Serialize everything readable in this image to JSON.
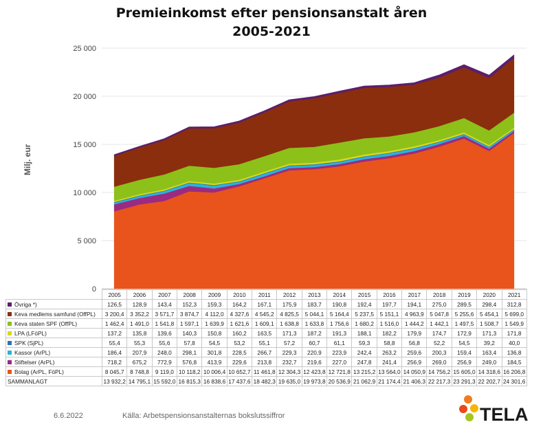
{
  "title_line1": "Premieinkomst efter pensionsanstalt åren",
  "title_line2": "2005-2021",
  "footer": {
    "date": "6.6.2022",
    "source": "Källa: Arbetspensionsanstalternas bokslutssiffror"
  },
  "logo": {
    "text": "TELA"
  },
  "chart_data": {
    "type": "area",
    "stacked": true,
    "title": "Premieinkomst efter pensionsanstalt åren 2005-2021",
    "ylabel": "Milj. eur",
    "ylim": [
      0,
      25000
    ],
    "yticks": [
      0,
      5000,
      10000,
      15000,
      20000,
      25000
    ],
    "ytick_labels": [
      "0",
      "5 000",
      "10 000",
      "15 000",
      "20 000",
      "25 000"
    ],
    "grid": true,
    "categories": [
      "2005",
      "2006",
      "2007",
      "2008",
      "2009",
      "2010",
      "2011",
      "2012",
      "2013",
      "2014",
      "2015",
      "2016",
      "2017",
      "2018",
      "2019",
      "2020",
      "2021"
    ],
    "series": [
      {
        "name": "Bolag (ArPL, FöPL)",
        "color": "#e8541c",
        "values": [
          8045.7,
          8748.8,
          9119.0,
          10118.2,
          10006.4,
          10652.7,
          11461.8,
          12304.3,
          12423.8,
          12721.8,
          13215.2,
          13564.0,
          14050.9,
          14756.2,
          15605.0,
          14318.6,
          16206.8
        ],
        "labels": [
          "8 045,7",
          "8 748,8",
          "9 119,0",
          "10 118,2",
          "10 006,4",
          "10 652,7",
          "11 461,8",
          "12 304,3",
          "12 423,8",
          "12 721,8",
          "13 215,2",
          "13 564,0",
          "14 050,9",
          "14 756,2",
          "15 605,0",
          "14 318,6",
          "16 206,8"
        ]
      },
      {
        "name": "Stiftelser (ArPL)",
        "color": "#9b2b82",
        "values": [
          718.2,
          675.2,
          772.9,
          576.8,
          413.9,
          229.6,
          213.8,
          232.7,
          219.6,
          227.0,
          247.8,
          241.4,
          256.9,
          269.0,
          256.9,
          249.0,
          184.5
        ],
        "labels": [
          "718,2",
          "675,2",
          "772,9",
          "576,8",
          "413,9",
          "229,6",
          "213,8",
          "232,7",
          "219,6",
          "227,0",
          "247,8",
          "241,4",
          "256,9",
          "269,0",
          "256,9",
          "249,0",
          "184,5"
        ]
      },
      {
        "name": "Kassor (ArPL)",
        "color": "#2bb3d6",
        "values": [
          186.4,
          207.9,
          248.0,
          298.1,
          301.8,
          228.5,
          266.7,
          229.3,
          220.9,
          223.9,
          242.4,
          263.2,
          259.6,
          200.3,
          159.4,
          163.4,
          136.8
        ],
        "labels": [
          "186,4",
          "207,9",
          "248,0",
          "298,1",
          "301,8",
          "228,5",
          "266,7",
          "229,3",
          "220,9",
          "223,9",
          "242,4",
          "263,2",
          "259,6",
          "200,3",
          "159,4",
          "163,4",
          "136,8"
        ]
      },
      {
        "name": "SPK (SjPL)",
        "color": "#2f6fb5",
        "values": [
          55.4,
          55.3,
          55.6,
          57.8,
          54.5,
          53.2,
          55.1,
          57.2,
          60.7,
          61.1,
          59.3,
          58.8,
          56.8,
          52.2,
          54.5,
          39.2,
          40.0
        ],
        "labels": [
          "55,4",
          "55,3",
          "55,6",
          "57,8",
          "54,5",
          "53,2",
          "55,1",
          "57,2",
          "60,7",
          "61,1",
          "59,3",
          "58,8",
          "56,8",
          "52,2",
          "54,5",
          "39,2",
          "40,0"
        ]
      },
      {
        "name": "LPA (LFöPL)",
        "color": "#d9d91a",
        "values": [
          137.2,
          135.8,
          139.6,
          140.3,
          150.8,
          160.2,
          163.5,
          171.3,
          187.2,
          191.3,
          188.1,
          182.2,
          179.9,
          174.7,
          172.9,
          171.3,
          171.8
        ],
        "labels": [
          "137,2",
          "135,8",
          "139,6",
          "140,3",
          "150,8",
          "160,2",
          "163,5",
          "171,3",
          "187,2",
          "191,3",
          "188,1",
          "182,2",
          "179,9",
          "174,7",
          "172,9",
          "171,3",
          "171,8"
        ]
      },
      {
        "name": "Keva staten SPF (OffPL)",
        "color": "#8ec01a",
        "values": [
          1462.4,
          1491.0,
          1541.8,
          1597.1,
          1639.9,
          1621.6,
          1609.1,
          1638.8,
          1633.8,
          1756.6,
          1680.2,
          1516.0,
          1444.2,
          1442.1,
          1497.5,
          1508.7,
          1549.9
        ],
        "labels": [
          "1 462,4",
          "1 491,0",
          "1 541,8",
          "1 597,1",
          "1 639,9",
          "1 621,6",
          "1 609,1",
          "1 638,8",
          "1 633,8",
          "1 756,6",
          "1 680,2",
          "1 516,0",
          "1 444,2",
          "1 442,1",
          "1 497,5",
          "1 508,7",
          "1 549,9"
        ]
      },
      {
        "name": "Keva medlems samfund (OffPL)",
        "color": "#8b2e0e",
        "values": [
          3200.4,
          3352.2,
          3571.7,
          3874.7,
          4112.0,
          4327.6,
          4545.2,
          4825.5,
          5044.1,
          5164.4,
          5237.5,
          5151.1,
          4963.9,
          5047.8,
          5255.6,
          5454.1,
          5699.0
        ],
        "labels": [
          "3 200,4",
          "3 352,2",
          "3 571,7",
          "3 874,7",
          "4 112,0",
          "4 327,6",
          "4 545,2",
          "4 825,5",
          "5 044,1",
          "5 164,4",
          "5 237,5",
          "5 151,1",
          "4 963,9",
          "5 047,8",
          "5 255,6",
          "5 454,1",
          "5 699,0"
        ]
      },
      {
        "name": "Övriga *)",
        "color": "#5c1f6b",
        "values": [
          126.5,
          128.9,
          143.4,
          152.3,
          159.3,
          164.2,
          167.1,
          175.9,
          183.7,
          190.8,
          192.4,
          197.7,
          194.1,
          275.0,
          289.5,
          298.4,
          312.8
        ],
        "labels": [
          "126,5",
          "128,9",
          "143,4",
          "152,3",
          "159,3",
          "164,2",
          "167,1",
          "175,9",
          "183,7",
          "190,8",
          "192,4",
          "197,7",
          "194,1",
          "275,0",
          "289,5",
          "298,4",
          "312,8"
        ]
      }
    ],
    "table_row_order": [
      "Övriga *)",
      "Keva medlems samfund (OffPL)",
      "Keva staten SPF (OffPL)",
      "LPA (LFöPL)",
      "SPK (SjPL)",
      "Kassor (ArPL)",
      "Stiftelser (ArPL)",
      "Bolag (ArPL, FöPL)"
    ],
    "total": {
      "name": "SAMMANLAGT",
      "values": [
        13932.2,
        14795.1,
        15592.0,
        16815.3,
        16838.6,
        17437.6,
        18482.3,
        19635.0,
        19973.8,
        20536.9,
        21062.9,
        21174.4,
        21406.3,
        22217.3,
        23291.3,
        22202.7,
        24301.6
      ],
      "labels": [
        "13 932,2",
        "14 795,1",
        "15 592,0",
        "16 815,3",
        "16 838,6",
        "17 437,6",
        "18 482,3",
        "19 635,0",
        "19 973,8",
        "20 536,9",
        "21 062,9",
        "21 174,4",
        "21 406,3",
        "22 217,3",
        "23 291,3",
        "22 202,7",
        "24 301,6"
      ]
    }
  }
}
